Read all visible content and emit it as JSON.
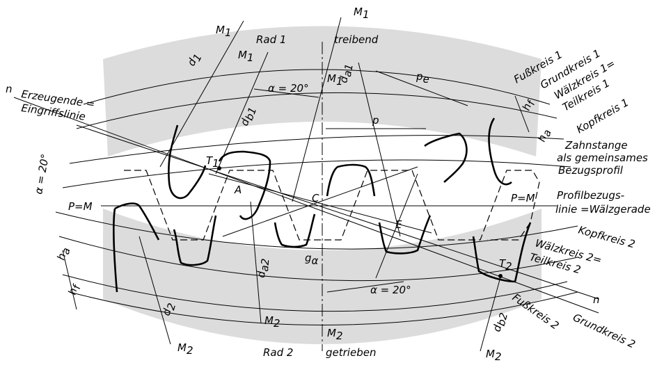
{
  "labels": {
    "rad1": "Rad 1",
    "treibend": "treibend",
    "rad2": "Rad 2",
    "getrieben": "getrieben",
    "m1": "M",
    "m1_sub": "1",
    "m2": "M",
    "m2_sub": "2",
    "d1": "d",
    "d1_sub": "1",
    "db1": "d",
    "db1_sub": "b1",
    "da1": "d",
    "da1_sub": "a1",
    "d2": "d",
    "d2_sub": "2",
    "da2": "d",
    "da2_sub": "a2",
    "db2": "d",
    "db2_sub": "b2",
    "pe": "p",
    "pe_sub": "e",
    "p": "p",
    "hf": "h",
    "hf_sub": "f",
    "ha": "h",
    "ha_sub": "a",
    "alpha_top": "α = 20°",
    "alpha_left": "α = 20°",
    "alpha_bottom": "α = 20°",
    "t1": "T",
    "t1_sub": "1",
    "t2": "T",
    "t2_sub": "2",
    "point_a": "A",
    "point_c": "C",
    "point_e": "E",
    "g_alpha": "g",
    "g_alpha_sub": "α",
    "pm_left": "P=M",
    "pm_right": "P=M",
    "n_left": "n",
    "n_right": "n",
    "erzeugende_1": "Erzeugende =",
    "erzeugende_2": "Eingriffslinie",
    "fusskreis_1": "Fußkreis 1",
    "grundkreis_1": "Grundkreis 1",
    "waelzkreis_1": "Wälzkreis 1=",
    "teilkreis_1": "Teilkreis 1",
    "kopfkreis_1": "Kopfkreis 1",
    "zahnstange_1": "Zahnstange",
    "zahnstange_2": "als gemeinsames",
    "zahnstange_3": "Bezugsprofil",
    "profil_1": "Profilbezugs-",
    "profil_2": "linie =Wälzgerade",
    "kopfkreis_2": "Kopfkreis 2",
    "waelzkreis_2": "Wälzkreis 2=",
    "teilkreis_2": "Teilkreis 2",
    "fusskreis_2": "Fußkreis 2",
    "grundkreis_2": "Grundkreis 2"
  }
}
